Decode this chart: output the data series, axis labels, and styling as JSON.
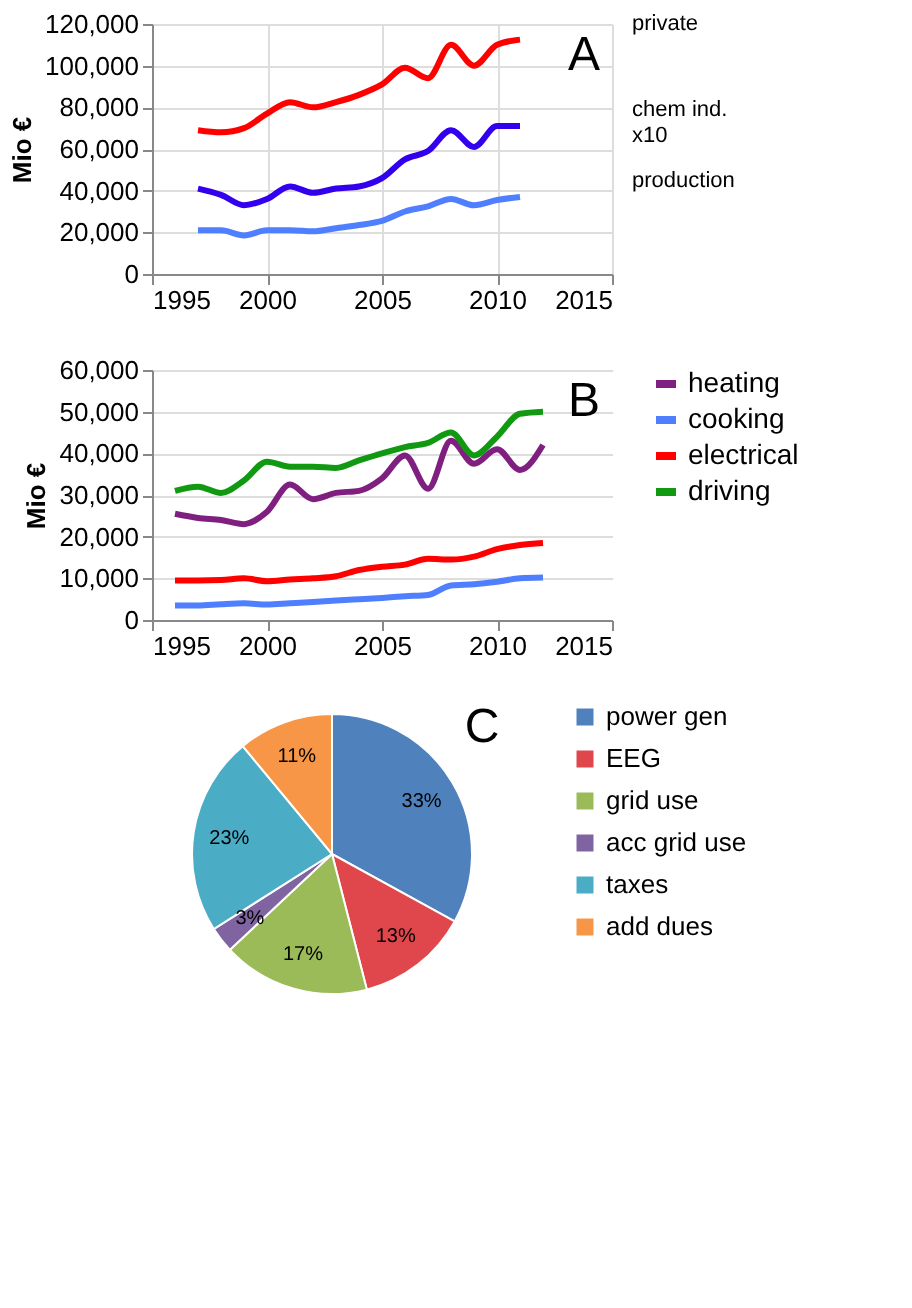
{
  "chart_data": [
    {
      "type": "line",
      "title": "A",
      "ylabel": "Mio €",
      "x": [
        1997,
        1998,
        1999,
        2000,
        2001,
        2002,
        2003,
        2004,
        2005,
        2006,
        2007,
        2008,
        2009,
        2010,
        2011
      ],
      "series": [
        {
          "name": "private",
          "color": "#ff0000",
          "values": [
            69000,
            68000,
            70000,
            77000,
            82500,
            80000,
            82500,
            86000,
            91000,
            99000,
            94000,
            110000,
            100000,
            110000,
            112500
          ]
        },
        {
          "name": "chem ind.\nx10",
          "color": "#3300ee",
          "values": [
            41000,
            38000,
            33000,
            36000,
            42000,
            39000,
            41000,
            42000,
            46000,
            55000,
            59000,
            69000,
            61000,
            71000,
            71000
          ]
        },
        {
          "name": "production",
          "color": "#4f7fff",
          "values": [
            21000,
            21000,
            18500,
            21000,
            21000,
            20500,
            22000,
            23500,
            25500,
            30000,
            32500,
            36000,
            33000,
            35500,
            37000
          ]
        }
      ],
      "xlim": [
        1995,
        2015
      ],
      "xticks": [
        1995,
        2000,
        2005,
        2010,
        2015
      ],
      "ylim": [
        0,
        120000
      ],
      "yticks": [
        0,
        {
          "value": 20000,
          "label": "20,000"
        },
        {
          "value": 40000,
          "label": "40,000"
        },
        {
          "value": 60000,
          "label": "60,000"
        },
        {
          "value": 80000,
          "label": "80,000"
        },
        {
          "value": 100000,
          "label": "100,000"
        },
        {
          "value": 120000,
          "label": "120,000"
        }
      ],
      "grid": true,
      "legend": false
    },
    {
      "type": "line",
      "title": "B",
      "ylabel": "Mio €",
      "x": [
        1996,
        1997,
        1998,
        1999,
        2000,
        2001,
        2002,
        2003,
        2004,
        2005,
        2006,
        2007,
        2008,
        2009,
        2010,
        2011,
        2012
      ],
      "series": [
        {
          "name": "heating",
          "color": "#7f1f7f",
          "values": [
            25500,
            24500,
            24000,
            23000,
            26000,
            32500,
            29000,
            30500,
            31000,
            34000,
            39500,
            31500,
            43000,
            37500,
            41000,
            36000,
            42000
          ]
        },
        {
          "name": "cooking",
          "color": "#4f7fff",
          "values": [
            3500,
            3500,
            3800,
            4000,
            3700,
            4000,
            4300,
            4700,
            5000,
            5300,
            5700,
            6000,
            8300,
            8600,
            9200,
            10000,
            10200
          ]
        },
        {
          "name": "electrical",
          "color": "#ff0000",
          "values": [
            9500,
            9500,
            9600,
            10000,
            9300,
            9700,
            10000,
            10500,
            12000,
            12800,
            13300,
            14700,
            14500,
            15200,
            17000,
            18000,
            18500
          ]
        },
        {
          "name": "driving",
          "color": "#119911",
          "values": [
            31000,
            32000,
            30500,
            33500,
            38000,
            36800,
            36800,
            36500,
            38300,
            40000,
            41500,
            42500,
            45000,
            39500,
            44000,
            49500,
            50000
          ]
        }
      ],
      "xlim": [
        1995,
        2015
      ],
      "xticks": [
        1995,
        2000,
        2005,
        2010,
        2015
      ],
      "ylim": [
        0,
        60000
      ],
      "yticks": [
        0,
        {
          "value": 10000,
          "label": "10,000"
        },
        {
          "value": 20000,
          "label": "20,000"
        },
        {
          "value": 30000,
          "label": "30,000"
        },
        {
          "value": 40000,
          "label": "40,000"
        },
        {
          "value": 50000,
          "label": "50,000"
        },
        {
          "value": 60000,
          "label": "60,000"
        }
      ],
      "grid": "y",
      "legend": "right"
    },
    {
      "type": "pie",
      "title": "C",
      "categories": [
        "power gen",
        "EEG",
        "grid use",
        "acc grid use",
        "taxes",
        "add dues"
      ],
      "values": [
        33,
        13,
        17,
        3,
        23,
        11
      ],
      "value_labels": [
        "33%",
        "13%",
        "17%",
        "3%",
        "23%",
        "11%"
      ],
      "colors": [
        "#4f81bd",
        "#e0474c",
        "#9bbb59",
        "#8064a2",
        "#4bacc6",
        "#f79646"
      ],
      "legend": "right"
    }
  ]
}
